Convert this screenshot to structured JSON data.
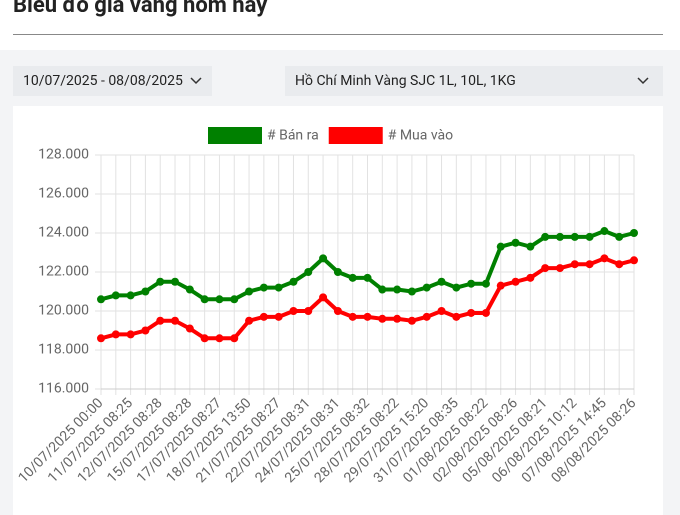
{
  "header": {
    "title": "Biểu đồ giá vàng hôm nay"
  },
  "filters": {
    "date_range": "10/07/2025 - 08/08/2025",
    "product": "Hồ Chí Minh Vàng SJC 1L, 10L, 1KG"
  },
  "chart_data": {
    "type": "line",
    "categories": [
      "10/07/2025 00:00",
      null,
      "11/07/2025 08:25",
      null,
      "12/07/2025 08:28",
      null,
      "15/07/2025 08:28",
      null,
      "17/07/2025 08:27",
      null,
      "18/07/2025 13:50",
      null,
      "21/07/2025 08:27",
      null,
      "22/07/2025 08:31",
      null,
      "24/07/2025 08:31",
      null,
      "25/07/2025 08:32",
      null,
      "28/07/2025 08:22",
      null,
      "29/07/2025 15:20",
      null,
      "31/07/2025 08:35",
      null,
      "01/08/2025 08:22",
      null,
      "02/08/2025 08:26",
      null,
      "05/08/2025 08:21",
      null,
      "06/08/2025 10:12",
      null,
      "07/08/2025 14:45",
      null,
      "08/08/2025 08:26"
    ],
    "series": [
      {
        "name": "# Bán ra",
        "color": "#008000",
        "values": [
          120600,
          120800,
          120800,
          121000,
          121500,
          121500,
          121100,
          120600,
          120600,
          120600,
          121000,
          121200,
          121200,
          121500,
          122000,
          122700,
          122000,
          121700,
          121700,
          121100,
          121100,
          121000,
          121200,
          121500,
          121200,
          121400,
          121400,
          123300,
          123500,
          123300,
          123800,
          123800,
          123800,
          123800,
          124100,
          123800,
          124000
        ]
      },
      {
        "name": "# Mua vào",
        "color": "#ff0000",
        "values": [
          118600,
          118800,
          118800,
          119000,
          119500,
          119500,
          119100,
          118600,
          118600,
          118600,
          119500,
          119700,
          119700,
          120000,
          120000,
          120700,
          120000,
          119700,
          119700,
          119600,
          119600,
          119500,
          119700,
          120000,
          119700,
          119900,
          119900,
          121300,
          121500,
          121700,
          122200,
          122200,
          122400,
          122400,
          122700,
          122400,
          122600
        ]
      }
    ],
    "ylim": [
      116000,
      128000
    ],
    "yticks": [
      {
        "value": 116000,
        "label": "116.000"
      },
      {
        "value": 118000,
        "label": "118.000"
      },
      {
        "value": 120000,
        "label": "120.000"
      },
      {
        "value": 122000,
        "label": "122.000"
      },
      {
        "value": 124000,
        "label": "124.000"
      },
      {
        "value": 126000,
        "label": "126.000"
      },
      {
        "value": 128000,
        "label": "128.000"
      }
    ],
    "grid": true,
    "legend": "top"
  }
}
